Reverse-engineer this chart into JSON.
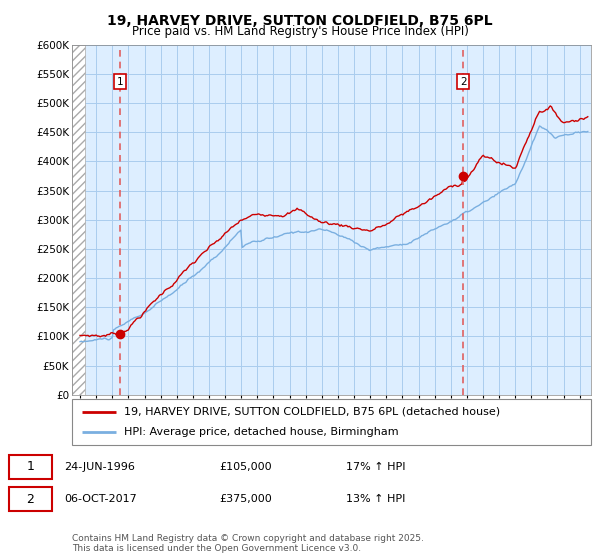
{
  "title": "19, HARVEY DRIVE, SUTTON COLDFIELD, B75 6PL",
  "subtitle": "Price paid vs. HM Land Registry's House Price Index (HPI)",
  "ylim": [
    0,
    600000
  ],
  "xlim_start": 1993.5,
  "xlim_end": 2025.7,
  "sale1_x": 1996.48,
  "sale1_y": 105000,
  "sale2_x": 2017.77,
  "sale2_y": 375000,
  "line1_color": "#cc0000",
  "line2_color": "#7aafe0",
  "vline_color": "#e06060",
  "bg_color": "#ddeeff",
  "hatch_color": "#c8c8c8",
  "grid_color": "#aaccee",
  "legend_label1": "19, HARVEY DRIVE, SUTTON COLDFIELD, B75 6PL (detached house)",
  "legend_label2": "HPI: Average price, detached house, Birmingham",
  "annotation1_date": "24-JUN-1996",
  "annotation1_price": "£105,000",
  "annotation1_hpi": "17% ↑ HPI",
  "annotation2_date": "06-OCT-2017",
  "annotation2_price": "£375,000",
  "annotation2_hpi": "13% ↑ HPI",
  "footer": "Contains HM Land Registry data © Crown copyright and database right 2025.\nThis data is licensed under the Open Government Licence v3.0.",
  "title_fontsize": 10,
  "subtitle_fontsize": 8.5,
  "tick_fontsize": 7.5,
  "legend_fontsize": 8,
  "annotation_fontsize": 8,
  "footer_fontsize": 6.5
}
